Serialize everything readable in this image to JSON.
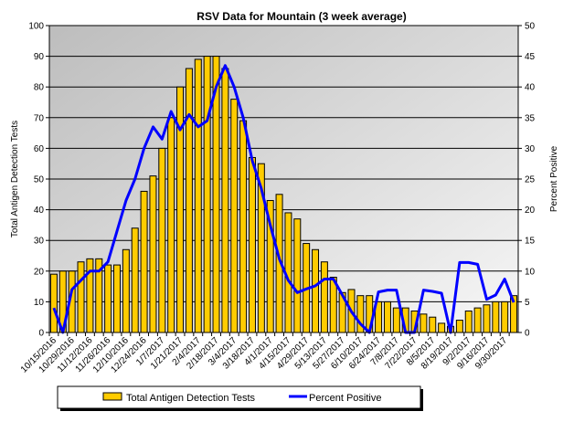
{
  "chart_data": {
    "type": "bar+line",
    "title": "RSV Data for Mountain (3 week average)",
    "ylabel_left": "Total Antigen Detection Tests",
    "ylabel_right": "Percent Positive",
    "ylim_left": [
      0,
      100
    ],
    "ylim_right": [
      0,
      50
    ],
    "yticks_left": [
      0,
      10,
      20,
      30,
      40,
      50,
      60,
      70,
      80,
      90,
      100
    ],
    "yticks_right": [
      0,
      5,
      10,
      15,
      20,
      25,
      30,
      35,
      40,
      45,
      50
    ],
    "grid": true,
    "legend_placement": "bottom",
    "x_tick_labels": [
      "10/15/2016",
      "10/29/2016",
      "11/12/2016",
      "11/26/2016",
      "12/10/2016",
      "12/24/2016",
      "1/7/2017",
      "1/21/2017",
      "2/4/2017",
      "2/18/2017",
      "3/4/2017",
      "3/18/2017",
      "4/1/2017",
      "4/15/2017",
      "4/29/2017",
      "5/13/2017",
      "5/27/2017",
      "6/10/2017",
      "6/24/2017",
      "7/8/2017",
      "7/22/2017",
      "8/5/2017",
      "8/19/2017",
      "9/2/2017",
      "9/16/2017",
      "9/30/2017"
    ],
    "series": [
      {
        "name": "Total Antigen Detection Tests",
        "type": "bar",
        "axis": "left",
        "color": "#FFCC00",
        "values": [
          19,
          20,
          20,
          23,
          24,
          24,
          22,
          22,
          27,
          34,
          46,
          51,
          60,
          70,
          80,
          86,
          89,
          90,
          90,
          86,
          76,
          69,
          57,
          55,
          43,
          45,
          39,
          37,
          29,
          27,
          23,
          18,
          13,
          14,
          12,
          12,
          10,
          10,
          8,
          8,
          7,
          6,
          5,
          3,
          2,
          4,
          7,
          8,
          9,
          10,
          10,
          12
        ]
      },
      {
        "name": "Percent Positive",
        "type": "line",
        "axis": "right",
        "color": "#0000FF",
        "values": [
          4,
          0,
          7,
          8.5,
          10,
          10,
          11.5,
          16.5,
          21.5,
          25,
          30,
          33.5,
          31.5,
          36,
          33,
          35.5,
          33.5,
          34.5,
          40,
          43.5,
          40,
          35,
          28,
          23.5,
          17.5,
          12,
          8.5,
          6.5,
          7.1,
          7.6,
          8.7,
          8.7,
          6.1,
          3.4,
          1.4,
          0,
          6.6,
          6.9,
          6.9,
          0,
          0,
          6.9,
          6.7,
          6.4,
          0,
          11.4,
          11.4,
          11.1,
          5.4,
          6.1,
          8.7,
          4.9
        ]
      }
    ]
  }
}
